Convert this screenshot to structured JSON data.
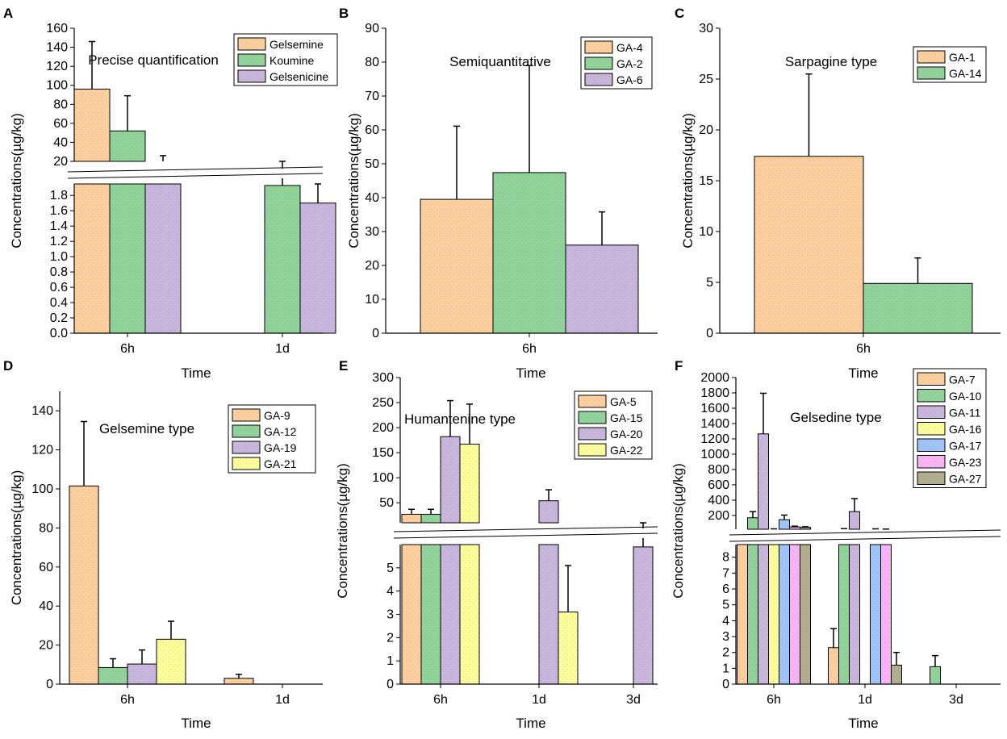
{
  "figure": {
    "ylabel": "Concentrations(µg/kg)",
    "xlabel": "Time",
    "colors": {
      "orange": "#fdcf9e",
      "green": "#92d39b",
      "purple": "#c8b6dd",
      "yellow": "#fdfd9b",
      "blue": "#9fc5f8",
      "pink": "#f8b4f4",
      "olive": "#b3ae90",
      "axis": "#000000"
    }
  },
  "chart_data": [
    {
      "panel": "A",
      "type": "bar",
      "title": "Precise quantification",
      "xlabel": "Time",
      "ylabel": "Concentrations(µg/kg)",
      "categories": [
        "6h",
        "1d"
      ],
      "broken_axis": true,
      "lower_ylim": [
        0,
        1.95
      ],
      "lower_ticks": [
        "0.0",
        "0.2",
        "0.4",
        "0.6",
        "0.8",
        "1.0",
        "1.2",
        "1.4",
        "1.6",
        "1.8"
      ],
      "upper_ylim": [
        20,
        160
      ],
      "upper_ticks": [
        "20",
        "40",
        "60",
        "80",
        "100",
        "120",
        "140",
        "160"
      ],
      "legend_position": "top-right",
      "series": [
        {
          "name": "Gelsemine",
          "color": "#fdcf9e",
          "values": [
            96,
            null
          ],
          "errors": [
            50,
            null
          ]
        },
        {
          "name": "Koumine",
          "color": "#92d39b",
          "values": [
            52,
            1.93
          ],
          "errors": [
            37,
            0.06
          ]
        },
        {
          "name": "Gelsenicine",
          "color": "#c8b6dd",
          "values": [
            20,
            1.7
          ],
          "errors": [
            6,
            0.25
          ]
        }
      ]
    },
    {
      "panel": "B",
      "type": "bar",
      "title": "Semiquantitative",
      "xlabel": "Time",
      "ylabel": "Concentrations(µg/kg)",
      "categories": [
        "6h"
      ],
      "broken_axis": false,
      "ylim": [
        0,
        90
      ],
      "ticks": [
        "0",
        "10",
        "20",
        "30",
        "40",
        "50",
        "60",
        "70",
        "80",
        "90"
      ],
      "legend_position": "top-right",
      "series": [
        {
          "name": "GA-4",
          "color": "#fdcf9e",
          "values": [
            39.5
          ],
          "errors": [
            21.6
          ]
        },
        {
          "name": "GA-2",
          "color": "#92d39b",
          "values": [
            47.4
          ],
          "errors": [
            31.6
          ]
        },
        {
          "name": "GA-6",
          "color": "#c8b6dd",
          "values": [
            26
          ],
          "errors": [
            9.8
          ]
        }
      ]
    },
    {
      "panel": "C",
      "type": "bar",
      "title": "Sarpagine type",
      "xlabel": "Time",
      "ylabel": "Concentrations(µg/kg)",
      "categories": [
        "6h"
      ],
      "broken_axis": false,
      "ylim": [
        0,
        30
      ],
      "ticks": [
        "0",
        "5",
        "10",
        "15",
        "20",
        "25",
        "30"
      ],
      "legend_position": "top-right",
      "series": [
        {
          "name": "GA-1",
          "color": "#fdcf9e",
          "values": [
            17.4
          ],
          "errors": [
            8.1
          ]
        },
        {
          "name": "GA-14",
          "color": "#92d39b",
          "values": [
            4.9
          ],
          "errors": [
            2.5
          ]
        }
      ]
    },
    {
      "panel": "D",
      "type": "bar",
      "title": "Gelsemine type",
      "xlabel": "Time",
      "ylabel": "Concentrations(µg/kg)",
      "categories": [
        "6h",
        "1d"
      ],
      "broken_axis": false,
      "ylim": [
        0,
        150
      ],
      "ticks": [
        "0",
        "20",
        "40",
        "60",
        "80",
        "100",
        "120",
        "140"
      ],
      "legend_position": "top-right",
      "series": [
        {
          "name": "GA-9",
          "color": "#fdcf9e",
          "values": [
            101.5,
            3
          ],
          "errors": [
            33,
            2
          ]
        },
        {
          "name": "GA-12",
          "color": "#92d39b",
          "values": [
            8.5,
            null
          ],
          "errors": [
            4.5,
            null
          ]
        },
        {
          "name": "GA-19",
          "color": "#c8b6dd",
          "values": [
            10.3,
            null
          ],
          "errors": [
            7.2,
            null
          ]
        },
        {
          "name": "GA-21",
          "color": "#fdfd9b",
          "values": [
            23,
            null
          ],
          "errors": [
            9.2,
            null
          ]
        }
      ]
    },
    {
      "panel": "E",
      "type": "bar",
      "title": "Humantenine type",
      "xlabel": "Time",
      "ylabel": "Concentrations(µg/kg)",
      "categories": [
        "6h",
        "1d",
        "3d"
      ],
      "broken_axis": true,
      "lower_ylim": [
        0,
        6
      ],
      "lower_ticks": [
        "0",
        "1",
        "2",
        "3",
        "4",
        "5"
      ],
      "upper_ylim": [
        10,
        300
      ],
      "upper_ticks": [
        "50",
        "100",
        "150",
        "200",
        "250",
        "300"
      ],
      "legend_position": "top-right",
      "series": [
        {
          "name": "GA-5",
          "color": "#fdcf9e",
          "values": [
            27,
            null,
            null
          ],
          "errors": [
            10,
            null,
            null
          ]
        },
        {
          "name": "GA-15",
          "color": "#92d39b",
          "values": [
            27,
            null,
            null
          ],
          "errors": [
            10,
            null,
            null
          ]
        },
        {
          "name": "GA-20",
          "color": "#c8b6dd",
          "values": [
            182,
            54,
            5.9
          ],
          "errors": [
            72,
            22,
            0.15
          ]
        },
        {
          "name": "GA-22",
          "color": "#fdfd9b",
          "values": [
            167,
            3.1,
            null
          ],
          "errors": [
            80,
            2.0,
            null
          ]
        }
      ]
    },
    {
      "panel": "F",
      "type": "bar",
      "title": "Gelsedine type",
      "xlabel": "Time",
      "ylabel": "Concentrations(µg/kg)",
      "categories": [
        "6h",
        "1d",
        "3d"
      ],
      "broken_axis": true,
      "lower_ylim": [
        0,
        8.8
      ],
      "lower_ticks": [
        "0",
        "1",
        "2",
        "3",
        "4",
        "5",
        "6",
        "7",
        "8"
      ],
      "upper_ylim": [
        20,
        2000
      ],
      "upper_ticks": [
        "200",
        "400",
        "600",
        "800",
        "1000",
        "1200",
        "1400",
        "1600",
        "1800",
        "2000"
      ],
      "legend_position": "top-right",
      "series": [
        {
          "name": "GA-7",
          "color": "#fdcf9e",
          "values": [
            10,
            2.3,
            null
          ],
          "errors": [
            null,
            1.2,
            null
          ]
        },
        {
          "name": "GA-10",
          "color": "#92d39b",
          "values": [
            170,
            20,
            1.1
          ],
          "errors": [
            80,
            8,
            0.7
          ]
        },
        {
          "name": "GA-11",
          "color": "#c8b6dd",
          "values": [
            1265,
            250,
            null
          ],
          "errors": [
            530,
            170,
            null
          ]
        },
        {
          "name": "GA-16",
          "color": "#fdfd9b",
          "values": [
            20,
            null,
            null
          ],
          "errors": [
            5,
            null,
            null
          ]
        },
        {
          "name": "GA-17",
          "color": "#9fc5f8",
          "values": [
            145,
            20,
            null
          ],
          "errors": [
            60,
            5,
            null
          ]
        },
        {
          "name": "GA-23",
          "color": "#f8b4f4",
          "values": [
            50,
            18,
            null
          ],
          "errors": [
            10,
            4,
            null
          ]
        },
        {
          "name": "GA-27",
          "color": "#b3ae90",
          "values": [
            45,
            1.2,
            null
          ],
          "errors": [
            8,
            0.8,
            null
          ]
        }
      ]
    }
  ]
}
